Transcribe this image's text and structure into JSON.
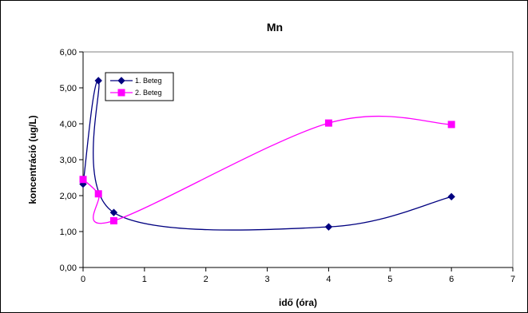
{
  "chart_data": {
    "type": "line",
    "title": "Mn",
    "xlabel": "idő (óra)",
    "ylabel": "koncentráció (ug/L)",
    "xlim": [
      0,
      7
    ],
    "ylim": [
      0,
      6
    ],
    "xticks": [
      0,
      1,
      2,
      3,
      4,
      5,
      6,
      7
    ],
    "yticks": [
      0,
      1,
      2,
      3,
      4,
      5,
      6
    ],
    "xtick_labels": [
      "0",
      "1",
      "2",
      "3",
      "4",
      "5",
      "6",
      "7"
    ],
    "ytick_labels": [
      "0,00",
      "1,00",
      "2,00",
      "3,00",
      "4,00",
      "5,00",
      "6,00"
    ],
    "grid": "none",
    "legend_position": "top-left",
    "smooth": true,
    "series": [
      {
        "name": "1. Beteg",
        "color": "#000080",
        "marker": "diamond",
        "x": [
          0,
          0.25,
          0.5,
          4,
          6
        ],
        "y": [
          2.32,
          5.2,
          1.53,
          1.13,
          1.97
        ]
      },
      {
        "name": "2. Beteg",
        "color": "#FF00FF",
        "marker": "square",
        "x": [
          0,
          0.25,
          0.5,
          4,
          6
        ],
        "y": [
          2.45,
          2.05,
          1.3,
          4.02,
          3.98
        ]
      }
    ]
  }
}
